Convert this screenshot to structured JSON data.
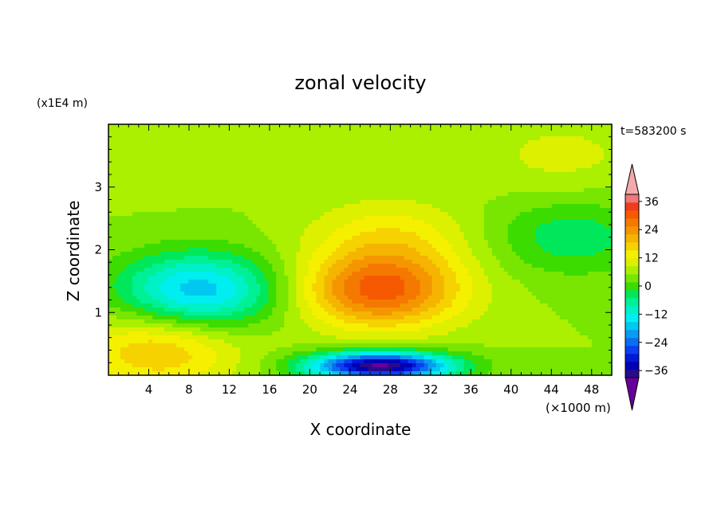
{
  "chart_data": {
    "type": "heatmap",
    "title": "zonal velocity",
    "xlabel": "X coordinate",
    "ylabel": "Z coordinate",
    "x_unit": "(×1000 m)",
    "y_unit": "(x1E4 m)",
    "time_label": "t=583200 s",
    "xlim": [
      0,
      50
    ],
    "ylim": [
      0,
      4
    ],
    "x_ticks": [
      "4",
      "8",
      "12",
      "16",
      "20",
      "24",
      "28",
      "32",
      "36",
      "40",
      "44",
      "48"
    ],
    "y_ticks": [
      "1",
      "2",
      "3"
    ],
    "colorbar": {
      "levels": [
        -42,
        -39,
        -36,
        -33,
        -30,
        -27,
        -24,
        -21,
        -18,
        -15,
        -12,
        -9,
        -6,
        -3,
        0,
        3,
        6,
        9,
        12,
        15,
        18,
        21,
        24,
        27,
        30,
        33,
        36,
        39,
        42
      ],
      "colors": [
        "#660099",
        "#2a0a8c",
        "#0000b4",
        "#0018d8",
        "#0a40f0",
        "#0a6ef0",
        "#0a9cf0",
        "#00c8f0",
        "#00eef0",
        "#00f0c8",
        "#00f096",
        "#00e85a",
        "#3cdc00",
        "#78e600",
        "#aaf000",
        "#dcf000",
        "#f5f000",
        "#f5d200",
        "#f5b400",
        "#f59600",
        "#f57800",
        "#f55a00",
        "#f03c1e",
        "#f07878",
        "#f4aaaa"
      ],
      "labels": [
        "36",
        "24",
        "12",
        "0",
        "−12",
        "−24",
        "−36"
      ],
      "label_values": [
        36,
        24,
        12,
        0,
        -12,
        -24,
        -36
      ]
    },
    "features": [
      {
        "x": 9,
        "z": 1.35,
        "amplitude": -20
      },
      {
        "x": 27,
        "z": 1.35,
        "amplitude": 22
      },
      {
        "x": 27,
        "z": 0.15,
        "amplitude": -40
      },
      {
        "x": 5,
        "z": 0.4,
        "amplitude": 12
      },
      {
        "x": 28,
        "z": 2.2,
        "amplitude": 8
      },
      {
        "x": 46,
        "z": 2.2,
        "amplitude": -8
      },
      {
        "x": 3,
        "z": 3.6,
        "amplitude": 3
      },
      {
        "x": 45,
        "z": 3.5,
        "amplitude": 4
      }
    ]
  }
}
